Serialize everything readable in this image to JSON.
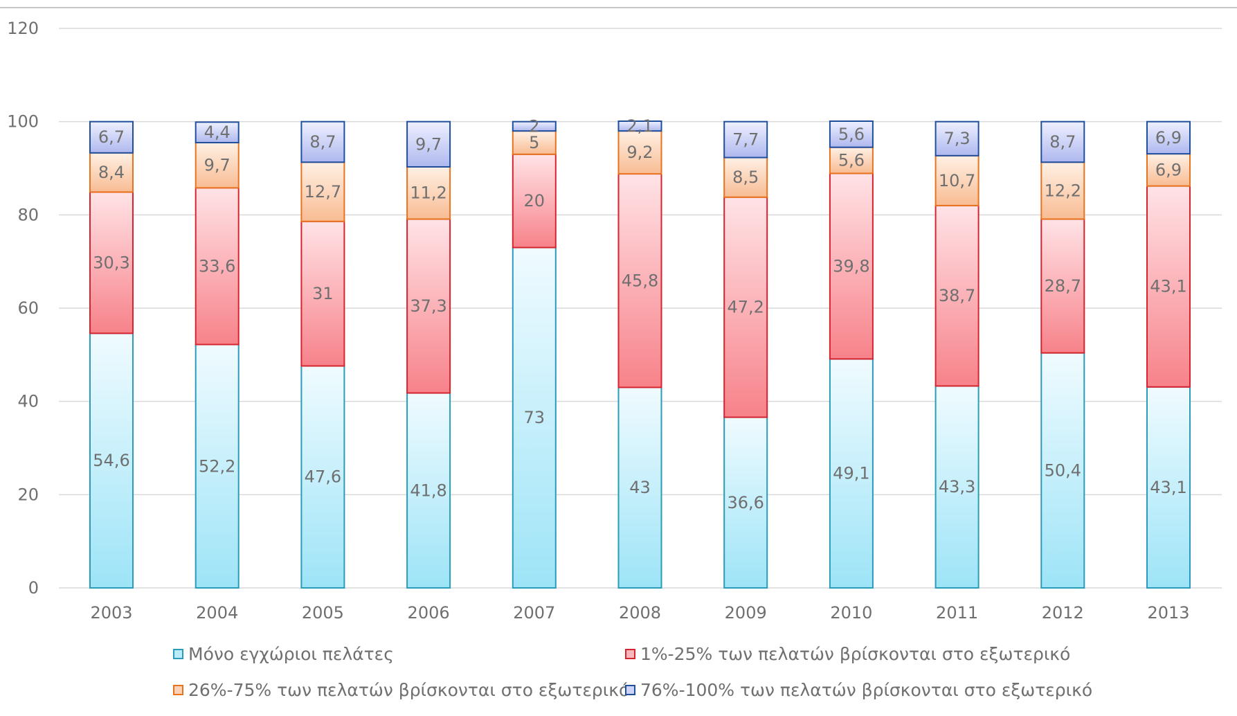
{
  "chart_data": {
    "type": "bar",
    "stacked": true,
    "categories": [
      "2003",
      "2004",
      "2005",
      "2006",
      "2007",
      "2008",
      "2009",
      "2010",
      "2011",
      "2012",
      "2013"
    ],
    "series": [
      {
        "name": "Μόνο εγχώριοι πελάτες",
        "color": "#2a9bb8",
        "values": [
          54.6,
          52.2,
          47.6,
          41.8,
          73,
          43,
          36.6,
          49.1,
          43.3,
          50.4,
          43.1
        ],
        "labels": [
          "54,6",
          "52,2",
          "47,6",
          "41,8",
          "73",
          "43",
          "36,6",
          "49,1",
          "43,3",
          "50,4",
          "43,1"
        ]
      },
      {
        "name": "1%-25% των πελατών βρίσκονται στο εξωτερικό",
        "color": "#d6242e",
        "values": [
          30.3,
          33.6,
          31,
          37.3,
          20,
          45.8,
          47.2,
          39.8,
          38.7,
          28.7,
          43.1
        ],
        "labels": [
          "30,3",
          "33,6",
          "31",
          "37,3",
          "20",
          "45,8",
          "47,2",
          "39,8",
          "38,7",
          "28,7",
          "43,1"
        ]
      },
      {
        "name": "26%-75% των πελατών βρίσκονται στο εξωτερικό",
        "color": "#e8731f",
        "values": [
          8.4,
          9.7,
          12.7,
          11.2,
          5,
          9.2,
          8.5,
          5.6,
          10.7,
          12.2,
          6.9
        ],
        "labels": [
          "8,4",
          "9,7",
          "12,7",
          "11,2",
          "5",
          "9,2",
          "8,5",
          "5,6",
          "10,7",
          "12,2",
          "6,9"
        ]
      },
      {
        "name": "76%-100% των πελατών βρίσκονται στο εξωτερικό",
        "color": "#1f4e9c",
        "values": [
          6.7,
          4.4,
          8.7,
          9.7,
          2,
          2.1,
          7.7,
          5.6,
          7.3,
          8.7,
          6.9
        ],
        "labels": [
          "6,7",
          "4,4",
          "8,7",
          "9,7",
          "2",
          "2,1",
          "7,7",
          "5,6",
          "7,3",
          "8,7",
          "6,9"
        ]
      }
    ],
    "yticks": [
      "0",
      "20",
      "40",
      "60",
      "80",
      "100",
      "120"
    ],
    "ylim": [
      0,
      120
    ],
    "grid": true,
    "legend_position": "bottom"
  }
}
